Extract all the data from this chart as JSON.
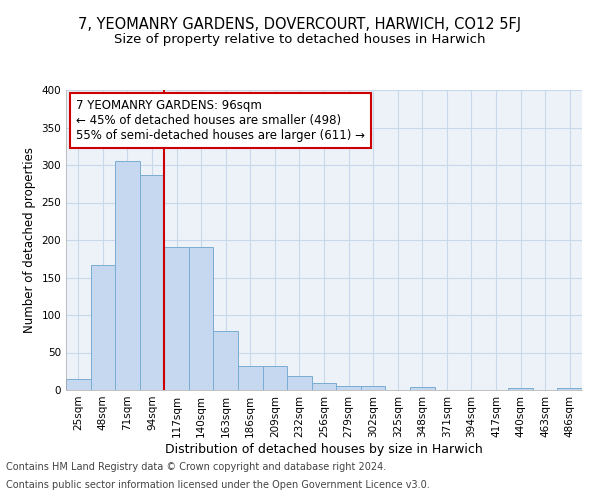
{
  "title": "7, YEOMANRY GARDENS, DOVERCOURT, HARWICH, CO12 5FJ",
  "subtitle": "Size of property relative to detached houses in Harwich",
  "xlabel": "Distribution of detached houses by size in Harwich",
  "ylabel": "Number of detached properties",
  "footnote1": "Contains HM Land Registry data © Crown copyright and database right 2024.",
  "footnote2": "Contains public sector information licensed under the Open Government Licence v3.0.",
  "categories": [
    "25sqm",
    "48sqm",
    "71sqm",
    "94sqm",
    "117sqm",
    "140sqm",
    "163sqm",
    "186sqm",
    "209sqm",
    "232sqm",
    "256sqm",
    "279sqm",
    "302sqm",
    "325sqm",
    "348sqm",
    "371sqm",
    "394sqm",
    "417sqm",
    "440sqm",
    "463sqm",
    "486sqm"
  ],
  "values": [
    15,
    167,
    306,
    287,
    191,
    191,
    79,
    32,
    32,
    19,
    10,
    6,
    5,
    0,
    4,
    0,
    0,
    0,
    3,
    0,
    3
  ],
  "bar_color": "#c5d8f0",
  "bar_edgecolor": "#7aadd4",
  "vline_x_index": 3,
  "vline_color": "#cc0000",
  "annotation_text": "7 YEOMANRY GARDENS: 96sqm\n← 45% of detached houses are smaller (498)\n55% of semi-detached houses are larger (611) →",
  "annotation_bbox_edgecolor": "#cc0000",
  "annotation_bbox_facecolor": "white",
  "ylim": [
    0,
    400
  ],
  "yticks": [
    0,
    50,
    100,
    150,
    200,
    250,
    300,
    350,
    400
  ],
  "grid_color": "#c8d8ea",
  "background_color": "#edf2f9",
  "title_fontsize": 10.5,
  "subtitle_fontsize": 9.5,
  "xlabel_fontsize": 9,
  "ylabel_fontsize": 8.5,
  "tick_fontsize": 7.5,
  "annotation_fontsize": 8.5,
  "footnote_fontsize": 7,
  "footnote_color": "#444444"
}
